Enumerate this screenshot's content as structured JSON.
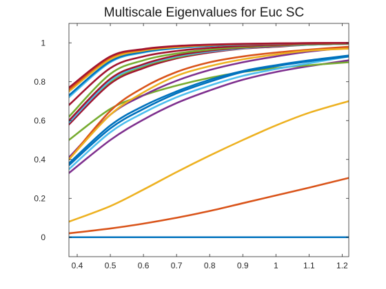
{
  "chart_data": {
    "type": "line",
    "title": "Multiscale Eigenvalues for Euc SC",
    "xlabel": "",
    "ylabel": "",
    "xlim": [
      0.375,
      1.22
    ],
    "ylim": [
      -0.1,
      1.1
    ],
    "xticks": [
      0.4,
      0.5,
      0.6,
      0.7,
      0.8,
      0.9,
      1,
      1.1,
      1.2
    ],
    "xtick_labels": [
      "0.4",
      "0.5",
      "0.6",
      "0.7",
      "0.8",
      "0.9",
      "1",
      "1.1",
      "1.2"
    ],
    "yticks": [
      0,
      0.2,
      0.4,
      0.6,
      0.8,
      1
    ],
    "ytick_labels": [
      "0",
      "0.2",
      "0.4",
      "0.6",
      "0.8",
      "1"
    ],
    "grid": false,
    "legend": "none",
    "x": [
      0.375,
      0.5,
      0.6,
      0.7,
      0.8,
      0.9,
      1.0,
      1.1,
      1.22
    ],
    "series": [
      {
        "color": "#0072BD",
        "values": [
          0.0,
          0.0,
          0.0,
          0.0,
          0.0,
          0.0,
          0.0,
          0.0,
          0.0
        ]
      },
      {
        "color": "#D95319",
        "values": [
          0.02,
          0.045,
          0.07,
          0.1,
          0.135,
          0.175,
          0.215,
          0.255,
          0.305
        ]
      },
      {
        "color": "#EDB120",
        "values": [
          0.08,
          0.16,
          0.245,
          0.335,
          0.42,
          0.5,
          0.575,
          0.64,
          0.7
        ]
      },
      {
        "color": "#7E2F8E",
        "values": [
          0.33,
          0.5,
          0.605,
          0.69,
          0.755,
          0.81,
          0.85,
          0.88,
          0.91
        ]
      },
      {
        "color": "#77AC30",
        "values": [
          0.5,
          0.66,
          0.73,
          0.78,
          0.82,
          0.85,
          0.87,
          0.885,
          0.9
        ]
      },
      {
        "color": "#4DBEEE",
        "values": [
          0.35,
          0.54,
          0.64,
          0.72,
          0.78,
          0.83,
          0.865,
          0.895,
          0.93
        ]
      },
      {
        "color": "#0072BD",
        "values": [
          0.37,
          0.56,
          0.66,
          0.74,
          0.8,
          0.85,
          0.88,
          0.905,
          0.93
        ]
      },
      {
        "color": "#0072BD",
        "values": [
          0.38,
          0.575,
          0.675,
          0.75,
          0.81,
          0.855,
          0.885,
          0.91,
          0.935
        ]
      },
      {
        "color": "#7E2F8E",
        "values": [
          0.41,
          0.63,
          0.73,
          0.805,
          0.86,
          0.9,
          0.93,
          0.955,
          0.975
        ]
      },
      {
        "color": "#D95319",
        "values": [
          0.4,
          0.65,
          0.77,
          0.85,
          0.9,
          0.93,
          0.95,
          0.965,
          0.98
        ]
      },
      {
        "color": "#EDB120",
        "values": [
          0.4,
          0.63,
          0.745,
          0.83,
          0.88,
          0.915,
          0.94,
          0.96,
          0.97
        ]
      },
      {
        "color": "#A2142F",
        "values": [
          0.58,
          0.79,
          0.87,
          0.92,
          0.95,
          0.97,
          0.98,
          0.99,
          0.995
        ]
      },
      {
        "color": "#77AC30",
        "values": [
          0.6,
          0.8,
          0.88,
          0.925,
          0.955,
          0.972,
          0.983,
          0.99,
          0.995
        ]
      },
      {
        "color": "#4DBEEE",
        "values": [
          0.59,
          0.805,
          0.885,
          0.93,
          0.955,
          0.972,
          0.983,
          0.99,
          0.995
        ]
      },
      {
        "color": "#A2142F",
        "values": [
          0.6,
          0.815,
          0.89,
          0.935,
          0.96,
          0.975,
          0.985,
          0.992,
          0.996
        ]
      },
      {
        "color": "#77AC30",
        "values": [
          0.62,
          0.84,
          0.91,
          0.945,
          0.965,
          0.978,
          0.987,
          0.992,
          0.996
        ]
      },
      {
        "color": "#A2142F",
        "values": [
          0.68,
          0.87,
          0.93,
          0.958,
          0.974,
          0.984,
          0.99,
          0.995,
          0.998
        ]
      },
      {
        "color": "#4DBEEE",
        "values": [
          0.72,
          0.9,
          0.95,
          0.972,
          0.984,
          0.991,
          0.995,
          0.998,
          1.0
        ]
      },
      {
        "color": "#0072BD",
        "values": [
          0.73,
          0.905,
          0.953,
          0.974,
          0.985,
          0.992,
          0.996,
          0.998,
          1.0
        ]
      },
      {
        "color": "#EDB120",
        "values": [
          0.75,
          0.915,
          0.96,
          0.978,
          0.988,
          0.993,
          0.996,
          0.998,
          1.0
        ]
      },
      {
        "color": "#D95319",
        "values": [
          0.76,
          0.925,
          0.965,
          0.982,
          0.99,
          0.994,
          0.997,
          0.999,
          1.0
        ]
      },
      {
        "color": "#A2142F",
        "values": [
          0.77,
          0.93,
          0.968,
          0.984,
          0.991,
          0.995,
          0.997,
          0.999,
          1.0
        ]
      }
    ]
  }
}
